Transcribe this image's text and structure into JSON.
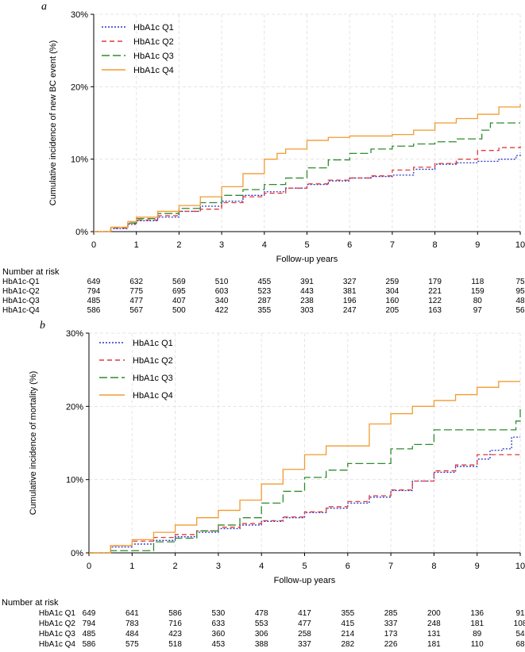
{
  "colors": {
    "q1": "#2a35c9",
    "q2": "#e23a3a",
    "q3": "#2e8b2e",
    "q4": "#f29b30",
    "grid": "#e4e4e4"
  },
  "chart_data": [
    {
      "type": "line",
      "panel_label": "a",
      "title": "",
      "xlabel": "Follow-up years",
      "ylabel": "Cumulative incidence of new BC event (%)",
      "xlim": [
        0,
        10
      ],
      "ylim": [
        0,
        30
      ],
      "x_ticks": [
        "0",
        "1",
        "2",
        "3",
        "4",
        "5",
        "6",
        "7",
        "8",
        "9",
        "10"
      ],
      "y_ticks": [
        "0%",
        "10%",
        "20%",
        "30%"
      ],
      "y_tick_values": [
        0,
        10,
        20,
        30
      ],
      "legend": {
        "placement": "top-left",
        "entries": [
          "HbA1c Q1",
          "HbA1c Q2",
          "HbA1c Q3",
          "HbA1c Q4"
        ]
      },
      "series": [
        {
          "name": "HbA1c Q1",
          "color_key": "q1",
          "dash": "2,2",
          "x": [
            0,
            0.4,
            0.8,
            1.0,
            1.5,
            2.0,
            2.5,
            3.0,
            3.5,
            4.0,
            4.5,
            5.0,
            5.5,
            6.0,
            6.5,
            7.0,
            7.5,
            8.0,
            8.5,
            9.0,
            9.5,
            9.9,
            10.0
          ],
          "y": [
            0,
            0.4,
            1.0,
            1.5,
            2.0,
            2.8,
            3.5,
            4.2,
            5.0,
            5.5,
            6.0,
            6.5,
            7.0,
            7.4,
            7.6,
            7.8,
            8.6,
            9.3,
            9.5,
            9.7,
            10.0,
            10.5,
            10.9
          ]
        },
        {
          "name": "HbA1c Q2",
          "color_key": "q2",
          "dash": "6,4",
          "x": [
            0,
            0.4,
            0.8,
            1.0,
            1.5,
            2.0,
            2.5,
            3.0,
            3.5,
            4.0,
            4.5,
            5.0,
            5.5,
            6.0,
            6.5,
            7.0,
            7.5,
            8.0,
            8.5,
            9.0,
            9.5,
            10.0
          ],
          "y": [
            0,
            0.5,
            1.1,
            1.6,
            2.2,
            2.8,
            3.1,
            4.0,
            4.8,
            5.3,
            6.0,
            6.6,
            7.1,
            7.4,
            7.7,
            8.5,
            8.9,
            9.4,
            10.0,
            11.2,
            11.6,
            11.8
          ]
        },
        {
          "name": "HbA1c Q3",
          "color_key": "q3",
          "dash": "10,4",
          "x": [
            0,
            0.4,
            0.8,
            1.0,
            1.5,
            2.0,
            2.5,
            3.0,
            3.5,
            4.0,
            4.5,
            5.0,
            5.5,
            6.0,
            6.5,
            7.0,
            7.5,
            8.0,
            8.5,
            9.0,
            9.1,
            9.3,
            10.0
          ],
          "y": [
            0,
            0.6,
            1.2,
            1.8,
            2.5,
            3.2,
            4.0,
            5.0,
            5.8,
            6.5,
            7.4,
            8.8,
            9.9,
            10.8,
            11.4,
            11.8,
            12.1,
            12.4,
            12.8,
            12.8,
            14.0,
            15.0,
            15.0
          ]
        },
        {
          "name": "HbA1c Q4",
          "color_key": "q4",
          "dash": "",
          "x": [
            0,
            0.4,
            0.8,
            1.0,
            1.5,
            2.0,
            2.5,
            3.0,
            3.5,
            4.0,
            4.3,
            4.5,
            5.0,
            5.5,
            6.0,
            6.5,
            7.0,
            7.5,
            8.0,
            8.5,
            9.0,
            9.5,
            10.0
          ],
          "y": [
            0,
            0.6,
            1.4,
            2.0,
            2.8,
            3.6,
            4.8,
            6.2,
            8.0,
            10.0,
            10.8,
            11.4,
            12.6,
            13.0,
            13.2,
            13.2,
            13.4,
            14.0,
            15.0,
            15.6,
            16.2,
            17.2,
            17.6
          ]
        }
      ],
      "risk_table": {
        "title": "Number at risk",
        "rows": [
          {
            "label": "HbA1c-Q1",
            "values": [
              "649",
              "632",
              "569",
              "510",
              "455",
              "391",
              "327",
              "259",
              "179",
              "118",
              "75"
            ]
          },
          {
            "label": "HbA1c-Q2",
            "values": [
              "794",
              "775",
              "695",
              "603",
              "523",
              "443",
              "381",
              "304",
              "221",
              "159",
              "95"
            ]
          },
          {
            "label": "HbA1c-Q3",
            "values": [
              "485",
              "477",
              "407",
              "340",
              "287",
              "238",
              "196",
              "160",
              "122",
              "80",
              "48"
            ]
          },
          {
            "label": "HbA1c-Q4",
            "values": [
              "586",
              "567",
              "500",
              "422",
              "355",
              "303",
              "247",
              "205",
              "163",
              "97",
              "56"
            ]
          }
        ]
      }
    },
    {
      "type": "line",
      "panel_label": "b",
      "title": "",
      "xlabel": "Follow-up years",
      "ylabel": "Cumulative incidence of mortality (%)",
      "xlim": [
        0,
        10
      ],
      "ylim": [
        0,
        30
      ],
      "x_ticks": [
        "0",
        "1",
        "2",
        "3",
        "4",
        "5",
        "6",
        "7",
        "8",
        "9",
        "10"
      ],
      "y_ticks": [
        "0%",
        "10%",
        "20%",
        "30%"
      ],
      "y_tick_values": [
        0,
        10,
        20,
        30
      ],
      "legend": {
        "placement": "top-left",
        "entries": [
          "HbA1c Q1",
          "HbA1c Q2",
          "HbA1c Q3",
          "HbA1c Q4"
        ]
      },
      "series": [
        {
          "name": "HbA1c Q1",
          "color_key": "q1",
          "dash": "2,2",
          "x": [
            0,
            0.5,
            1.0,
            1.5,
            2.0,
            2.5,
            3.0,
            3.5,
            4.0,
            4.5,
            5.0,
            5.5,
            6.0,
            6.5,
            7.0,
            7.5,
            8.0,
            8.5,
            9.0,
            9.3,
            9.6,
            9.8,
            10.0
          ],
          "y": [
            0,
            0.8,
            1.2,
            1.7,
            2.2,
            2.8,
            3.3,
            3.8,
            4.3,
            4.8,
            5.5,
            6.1,
            6.8,
            7.6,
            8.5,
            9.8,
            11.0,
            11.8,
            12.8,
            14.0,
            14.2,
            15.8,
            15.8
          ]
        },
        {
          "name": "HbA1c Q2",
          "color_key": "q2",
          "dash": "6,4",
          "x": [
            0,
            0.5,
            1.0,
            1.5,
            2.0,
            2.5,
            3.0,
            3.5,
            4.0,
            4.5,
            5.0,
            5.5,
            6.0,
            6.5,
            7.0,
            7.5,
            8.0,
            8.5,
            9.0,
            10.0
          ],
          "y": [
            0,
            1.0,
            1.6,
            2.1,
            2.5,
            3.0,
            3.5,
            4.0,
            4.4,
            4.9,
            5.6,
            6.3,
            7.0,
            7.8,
            8.6,
            9.8,
            11.2,
            12.0,
            13.4,
            13.4
          ]
        },
        {
          "name": "HbA1c Q3",
          "color_key": "q3",
          "dash": "10,4",
          "x": [
            0,
            0.5,
            1.0,
            1.5,
            2.0,
            2.5,
            3.0,
            3.5,
            4.0,
            4.5,
            5.0,
            5.5,
            6.0,
            6.5,
            7.0,
            7.5,
            8.0,
            8.5,
            9.0,
            9.5,
            9.8,
            9.9,
            10.0
          ],
          "y": [
            0,
            0.3,
            0.3,
            1.5,
            2.0,
            3.0,
            3.8,
            4.8,
            6.8,
            8.4,
            10.3,
            11.3,
            12.2,
            12.2,
            14.2,
            14.8,
            16.8,
            16.8,
            16.8,
            16.8,
            16.8,
            18.0,
            19.7
          ]
        },
        {
          "name": "HbA1c Q4",
          "color_key": "q4",
          "dash": "",
          "x": [
            0,
            0.5,
            1.0,
            1.5,
            2.0,
            2.5,
            3.0,
            3.5,
            4.0,
            4.5,
            5.0,
            5.5,
            6.0,
            6.5,
            7.0,
            7.5,
            8.0,
            8.5,
            9.0,
            9.5,
            10.0
          ],
          "y": [
            0,
            1.0,
            1.8,
            2.8,
            3.8,
            4.8,
            5.8,
            7.2,
            9.4,
            11.4,
            13.4,
            14.6,
            14.6,
            17.6,
            19.0,
            20.0,
            20.8,
            21.6,
            22.6,
            23.4,
            23.4
          ]
        }
      ],
      "risk_table": {
        "title": "Number at risk",
        "rows": [
          {
            "label": "HbA1c Q1",
            "values": [
              "649",
              "641",
              "586",
              "530",
              "478",
              "417",
              "355",
              "285",
              "200",
              "136",
              "91"
            ]
          },
          {
            "label": "HbA1c Q2",
            "values": [
              "794",
              "783",
              "716",
              "633",
              "553",
              "477",
              "415",
              "337",
              "248",
              "181",
              "108"
            ]
          },
          {
            "label": "HbA1c Q3",
            "values": [
              "485",
              "484",
              "423",
              "360",
              "306",
              "258",
              "214",
              "173",
              "131",
              "89",
              "54"
            ]
          },
          {
            "label": "HbA1c Q4",
            "values": [
              "586",
              "575",
              "518",
              "453",
              "388",
              "337",
              "282",
              "226",
              "181",
              "110",
              "68"
            ]
          }
        ]
      }
    }
  ]
}
